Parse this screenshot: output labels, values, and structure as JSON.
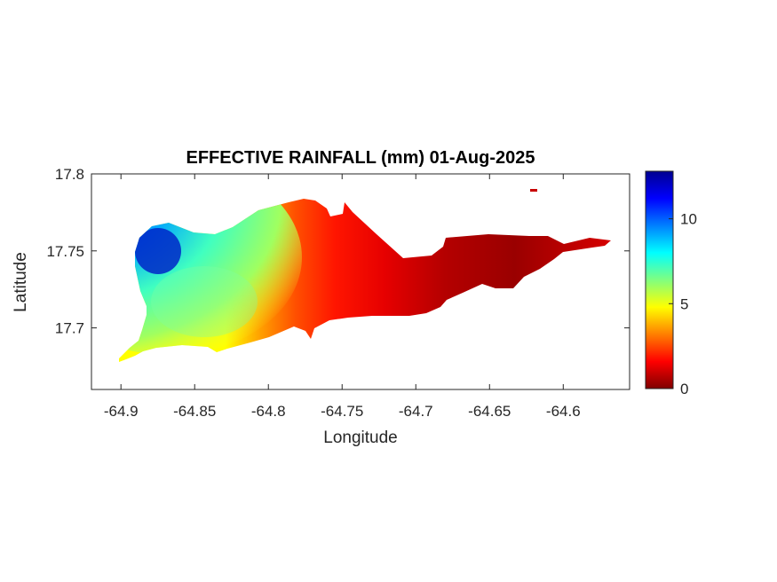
{
  "chart_data": {
    "type": "heatmap",
    "title": "EFFECTIVE RAINFALL (mm) 01-Aug-2025",
    "xlabel": "Longitude",
    "ylabel": "Latitude",
    "xlim": [
      -64.92,
      -64.555
    ],
    "ylim": [
      17.66,
      17.8
    ],
    "x_ticks": [
      "-64.9",
      "-64.85",
      "-64.8",
      "-64.75",
      "-64.7",
      "-64.65",
      "-64.6"
    ],
    "y_ticks": [
      "17.7",
      "17.75",
      "17.8"
    ],
    "colorbar": {
      "colormap": "jet",
      "clim": [
        0,
        12.8
      ],
      "ticks": [
        "0",
        "5",
        "10"
      ]
    },
    "field_samples": [
      {
        "lon": -64.89,
        "lat": 17.75,
        "value": 12.5
      },
      {
        "lon": -64.87,
        "lat": 17.735,
        "value": 9.5
      },
      {
        "lon": -64.86,
        "lat": 17.705,
        "value": 6.5
      },
      {
        "lon": -64.83,
        "lat": 17.73,
        "value": 7.5
      },
      {
        "lon": -64.8,
        "lat": 17.75,
        "value": 4.5
      },
      {
        "lon": -64.77,
        "lat": 17.75,
        "value": 2.5
      },
      {
        "lon": -64.73,
        "lat": 17.72,
        "value": 1.8
      },
      {
        "lon": -64.68,
        "lat": 17.735,
        "value": 1.0
      },
      {
        "lon": -64.64,
        "lat": 17.745,
        "value": 0.3
      },
      {
        "lon": -64.58,
        "lat": 17.752,
        "value": 1.3
      }
    ]
  }
}
